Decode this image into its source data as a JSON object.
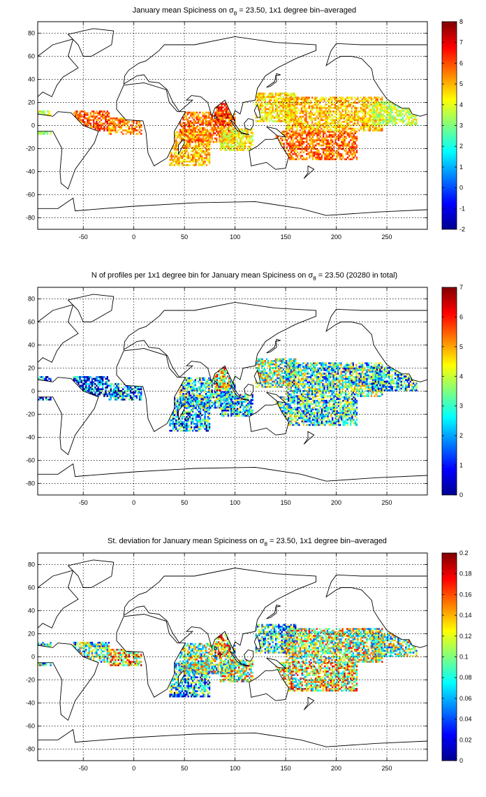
{
  "chart_data": [
    {
      "type": "heatmap",
      "title_prefix": "January mean Spiciness on ",
      "title_symbol": "σ",
      "title_subscript": "θ",
      "title_suffix": " = 23.50, 1x1 degree bin–averaged",
      "xlim": [
        -95,
        290
      ],
      "ylim": [
        -90,
        90
      ],
      "xticks": [
        -50,
        0,
        50,
        100,
        150,
        200,
        250
      ],
      "yticks": [
        -80,
        -60,
        -40,
        -20,
        0,
        20,
        40,
        60,
        80
      ],
      "colorbar": {
        "min": -2,
        "max": 8,
        "ticks": [
          "-2",
          "-1",
          "0",
          "1",
          "2",
          "3",
          "4",
          "5",
          "6",
          "7",
          "8"
        ]
      },
      "colormap": "jet",
      "grid": true,
      "regions": [
        {
          "x": [
            -95,
            -82
          ],
          "y": [
            -8,
            12
          ],
          "value": 3.8
        },
        {
          "x": [
            -60,
            -25
          ],
          "y": [
            -5,
            12
          ],
          "value": 5.9
        },
        {
          "x": [
            -25,
            8
          ],
          "y": [
            -8,
            6
          ],
          "value": 5.4
        },
        {
          "x": [
            35,
            75
          ],
          "y": [
            -35,
            -5
          ],
          "value": 4.9
        },
        {
          "x": [
            45,
            100
          ],
          "y": [
            -15,
            12
          ],
          "value": 5.6
        },
        {
          "x": [
            80,
            95
          ],
          "y": [
            0,
            20
          ],
          "value": 6.4
        },
        {
          "x": [
            85,
            118
          ],
          "y": [
            -22,
            -3
          ],
          "value": 4.3
        },
        {
          "x": [
            120,
            160
          ],
          "y": [
            3,
            28
          ],
          "value": 4.6
        },
        {
          "x": [
            140,
            220
          ],
          "y": [
            -30,
            -5
          ],
          "value": 5.7
        },
        {
          "x": [
            150,
            245
          ],
          "y": [
            -5,
            25
          ],
          "value": 4.8
        },
        {
          "x": [
            235,
            280
          ],
          "y": [
            0,
            20
          ],
          "value": 3.6
        }
      ]
    },
    {
      "type": "heatmap",
      "title_prefix": "N of profiles per 1x1 degree bin for January mean Spiciness on ",
      "title_symbol": "σ",
      "title_subscript": "θ",
      "title_suffix": " = 23.50 (20280 in total)",
      "xlim": [
        -95,
        290
      ],
      "ylim": [
        -90,
        90
      ],
      "xticks": [
        -50,
        0,
        50,
        100,
        150,
        200,
        250
      ],
      "yticks": [
        -80,
        -60,
        -40,
        -20,
        0,
        20,
        40,
        60,
        80
      ],
      "colorbar": {
        "min": 0,
        "max": 7,
        "ticks": [
          "0",
          "1",
          "2",
          "3",
          "4",
          "5",
          "6",
          "7"
        ]
      },
      "colormap": "jet",
      "grid": true,
      "regions": [
        {
          "x": [
            -95,
            -82
          ],
          "y": [
            -8,
            12
          ],
          "value": 1.5
        },
        {
          "x": [
            -60,
            -25
          ],
          "y": [
            -5,
            12
          ],
          "value": 1.3
        },
        {
          "x": [
            -25,
            8
          ],
          "y": [
            -8,
            6
          ],
          "value": 1.8
        },
        {
          "x": [
            35,
            75
          ],
          "y": [
            -35,
            -5
          ],
          "value": 2.0
        },
        {
          "x": [
            45,
            100
          ],
          "y": [
            -15,
            12
          ],
          "value": 2.8
        },
        {
          "x": [
            80,
            95
          ],
          "y": [
            0,
            20
          ],
          "value": 4.5
        },
        {
          "x": [
            85,
            118
          ],
          "y": [
            -22,
            -3
          ],
          "value": 2.5
        },
        {
          "x": [
            120,
            160
          ],
          "y": [
            3,
            28
          ],
          "value": 3.6
        },
        {
          "x": [
            140,
            220
          ],
          "y": [
            -30,
            -5
          ],
          "value": 2.8
        },
        {
          "x": [
            150,
            245
          ],
          "y": [
            -5,
            25
          ],
          "value": 3.0
        },
        {
          "x": [
            235,
            280
          ],
          "y": [
            0,
            20
          ],
          "value": 2.4
        }
      ]
    },
    {
      "type": "heatmap",
      "title_prefix": "St. deviation for January mean Spiciness on ",
      "title_symbol": "σ",
      "title_subscript": "θ",
      "title_suffix": " = 23.50, 1x1 degree bin–averaged",
      "xlim": [
        -95,
        290
      ],
      "ylim": [
        -90,
        90
      ],
      "xticks": [
        -50,
        0,
        50,
        100,
        150,
        200,
        250
      ],
      "yticks": [
        -80,
        -60,
        -40,
        -20,
        0,
        20,
        40,
        60,
        80
      ],
      "colorbar": {
        "min": 0,
        "max": 0.2,
        "ticks": [
          "0",
          "0.02",
          "0.04",
          "0.06",
          "0.08",
          "0.1",
          "0.12",
          "0.14",
          "0.16",
          "0.18",
          "0.2"
        ]
      },
      "colormap": "jet",
      "grid": true,
      "regions": [
        {
          "x": [
            -95,
            -82
          ],
          "y": [
            -8,
            12
          ],
          "value": 0.08
        },
        {
          "x": [
            -60,
            -25
          ],
          "y": [
            -5,
            12
          ],
          "value": 0.09
        },
        {
          "x": [
            -25,
            8
          ],
          "y": [
            -8,
            6
          ],
          "value": 0.13
        },
        {
          "x": [
            35,
            75
          ],
          "y": [
            -35,
            -5
          ],
          "value": 0.07
        },
        {
          "x": [
            45,
            100
          ],
          "y": [
            -15,
            12
          ],
          "value": 0.1
        },
        {
          "x": [
            80,
            95
          ],
          "y": [
            0,
            20
          ],
          "value": 0.14
        },
        {
          "x": [
            85,
            118
          ],
          "y": [
            -22,
            -3
          ],
          "value": 0.11
        },
        {
          "x": [
            120,
            160
          ],
          "y": [
            3,
            28
          ],
          "value": 0.08
        },
        {
          "x": [
            140,
            220
          ],
          "y": [
            -30,
            -5
          ],
          "value": 0.12
        },
        {
          "x": [
            150,
            245
          ],
          "y": [
            -5,
            25
          ],
          "value": 0.11
        },
        {
          "x": [
            235,
            280
          ],
          "y": [
            0,
            20
          ],
          "value": 0.1
        }
      ]
    }
  ]
}
